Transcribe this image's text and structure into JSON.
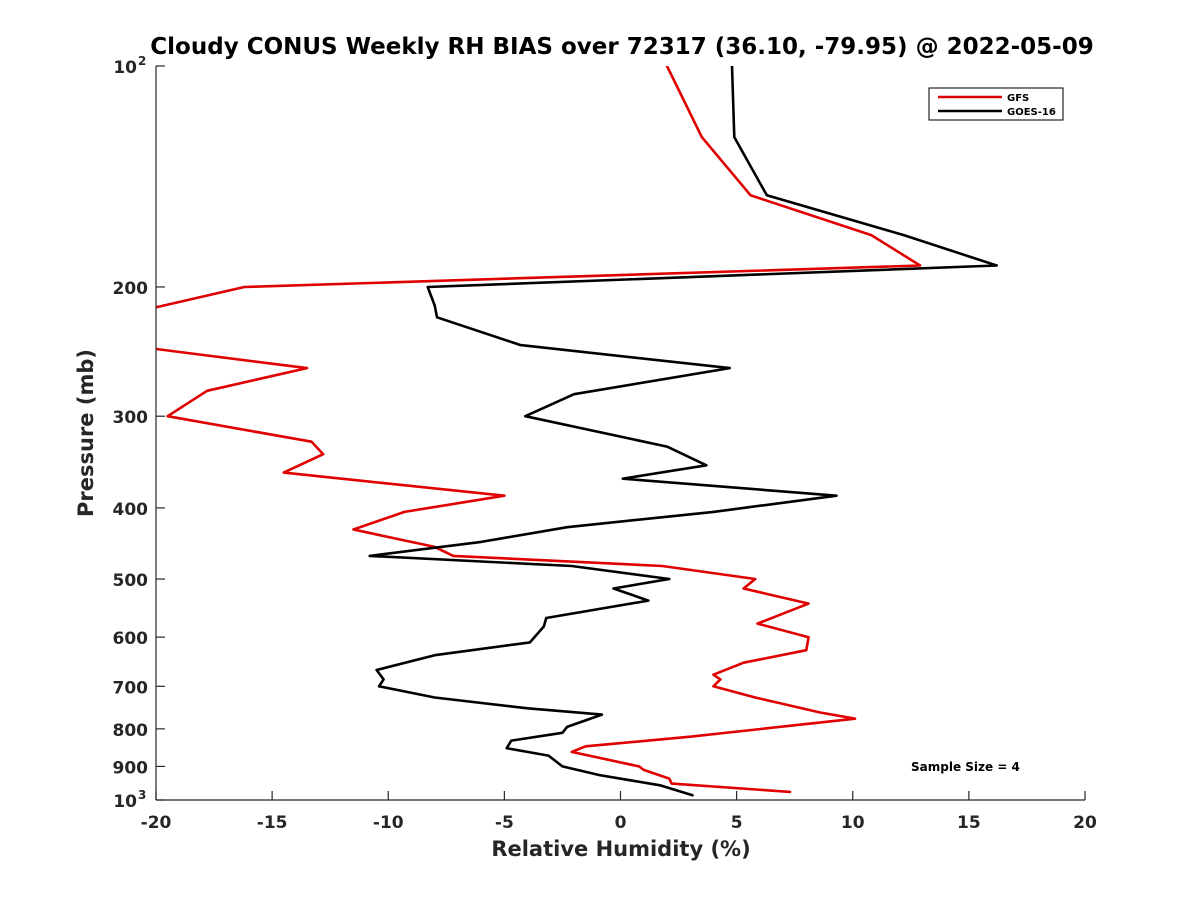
{
  "chart_data": {
    "type": "line",
    "title": "Cloudy CONUS Weekly RH BIAS over 72317 (36.10, -79.95) @ 2022-05-09",
    "xlabel": "Relative Humidity (%)",
    "ylabel": "Pressure (mb)",
    "xlim": [
      -20,
      20
    ],
    "ylim": [
      100,
      1000
    ],
    "y_scale": "log",
    "y_reversed": true,
    "x_ticks": [
      "-20",
      "-15",
      "-10",
      "-5",
      "0",
      "5",
      "10",
      "15",
      "20"
    ],
    "y_ticks": [
      {
        "value": 100,
        "label": "10",
        "exp": "2"
      },
      {
        "value": 200,
        "label": "200"
      },
      {
        "value": 300,
        "label": "300"
      },
      {
        "value": 400,
        "label": "400"
      },
      {
        "value": 500,
        "label": "500"
      },
      {
        "value": 600,
        "label": "600"
      },
      {
        "value": 700,
        "label": "700"
      },
      {
        "value": 800,
        "label": "800"
      },
      {
        "value": 900,
        "label": "900"
      },
      {
        "value": 1000,
        "label": "10",
        "exp": "3"
      }
    ],
    "grid": false,
    "legend": "top-right",
    "annotation": "Sample Size = 4",
    "series": [
      {
        "name": "GFS",
        "color": "#e00000",
        "points": [
          [
            2.0,
            100
          ],
          [
            3.5,
            125
          ],
          [
            5.6,
            150
          ],
          [
            10.8,
            170
          ],
          [
            12.9,
            187
          ],
          [
            -16.2,
            200
          ],
          [
            -20.5,
            215
          ],
          [
            -20.5,
            240
          ],
          [
            -20.0,
            243
          ],
          [
            -13.5,
            258
          ],
          [
            -17.8,
            277
          ],
          [
            -19.5,
            300
          ],
          [
            -13.3,
            325
          ],
          [
            -12.8,
            338
          ],
          [
            -14.5,
            358
          ],
          [
            -5.0,
            385
          ],
          [
            -9.3,
            405
          ],
          [
            -11.5,
            428
          ],
          [
            -8.0,
            452
          ],
          [
            -7.2,
            465
          ],
          [
            1.8,
            480
          ],
          [
            5.8,
            500
          ],
          [
            5.3,
            515
          ],
          [
            8.1,
            540
          ],
          [
            5.9,
            575
          ],
          [
            8.1,
            600
          ],
          [
            8.0,
            625
          ],
          [
            5.3,
            650
          ],
          [
            4.0,
            675
          ],
          [
            4.3,
            685
          ],
          [
            4.0,
            700
          ],
          [
            5.8,
            725
          ],
          [
            8.6,
            760
          ],
          [
            10.1,
            775
          ],
          [
            3.0,
            820
          ],
          [
            -1.5,
            845
          ],
          [
            -2.1,
            860
          ],
          [
            0.8,
            900
          ],
          [
            1.0,
            910
          ],
          [
            2.1,
            935
          ],
          [
            2.2,
            950
          ],
          [
            7.3,
            975
          ]
        ]
      },
      {
        "name": "GOES-16",
        "color": "#000000",
        "points": [
          [
            4.8,
            100
          ],
          [
            4.9,
            125
          ],
          [
            6.3,
            150
          ],
          [
            12.2,
            170
          ],
          [
            16.2,
            187
          ],
          [
            -8.3,
            200
          ],
          [
            -8.0,
            212
          ],
          [
            -7.9,
            220
          ],
          [
            -4.3,
            240
          ],
          [
            4.7,
            258
          ],
          [
            -2.0,
            280
          ],
          [
            -4.1,
            300
          ],
          [
            2.0,
            330
          ],
          [
            3.7,
            350
          ],
          [
            0.1,
            365
          ],
          [
            9.3,
            385
          ],
          [
            4.0,
            405
          ],
          [
            -2.3,
            425
          ],
          [
            -6.0,
            445
          ],
          [
            -10.8,
            465
          ],
          [
            -2.1,
            480
          ],
          [
            2.1,
            500
          ],
          [
            -0.3,
            515
          ],
          [
            1.2,
            535
          ],
          [
            -3.2,
            565
          ],
          [
            -3.3,
            580
          ],
          [
            -3.9,
            610
          ],
          [
            -8.0,
            635
          ],
          [
            -10.5,
            665
          ],
          [
            -10.2,
            685
          ],
          [
            -10.4,
            700
          ],
          [
            -8.0,
            725
          ],
          [
            -4.0,
            750
          ],
          [
            -0.8,
            765
          ],
          [
            -2.3,
            795
          ],
          [
            -2.5,
            810
          ],
          [
            -4.7,
            830
          ],
          [
            -4.9,
            850
          ],
          [
            -3.1,
            870
          ],
          [
            -2.5,
            900
          ],
          [
            -0.9,
            925
          ],
          [
            1.7,
            955
          ],
          [
            3.1,
            985
          ]
        ]
      }
    ]
  }
}
